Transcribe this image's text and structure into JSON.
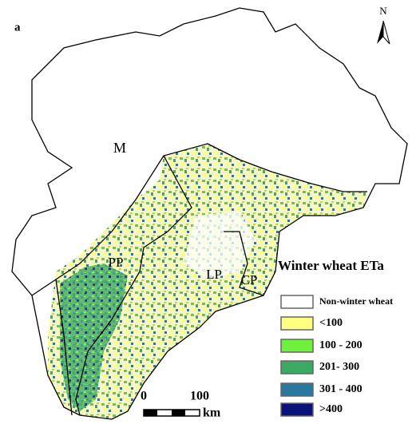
{
  "panel_label": "a",
  "north_arrow": "N",
  "regions": [
    "M",
    "PP",
    "LP",
    "CP"
  ],
  "legend": {
    "title": "Winter wheat ETa",
    "items": [
      {
        "label": "Non-winter wheat",
        "color": "#ffffff"
      },
      {
        "label": "<100",
        "color": "#ffff80"
      },
      {
        "label": "100 - 200",
        "color": "#6ef03c"
      },
      {
        "label": "201- 300",
        "color": "#3caa64"
      },
      {
        "label": "301 - 400",
        "color": "#2878a0"
      },
      {
        "label": ">400",
        "color": "#0a1478"
      }
    ]
  },
  "scale_bar": {
    "start": "0",
    "end": "100",
    "unit": "km"
  }
}
